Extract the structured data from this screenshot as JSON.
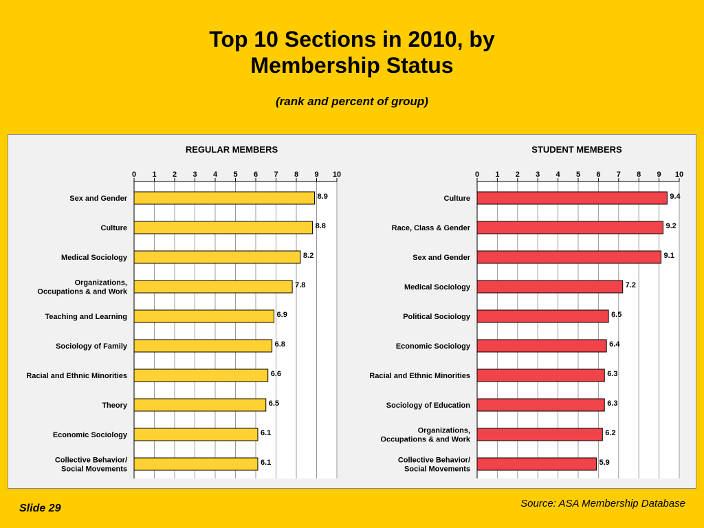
{
  "slide": {
    "title_line1": "Top 10 Sections in 2010, by",
    "title_line2": "Membership Status",
    "subtitle": "(rank and percent of group)",
    "slide_number": "Slide 29",
    "source": "Source: ASA Membership Database"
  },
  "colors": {
    "background": "#FFCC00",
    "regular_bar": "#FFD133",
    "student_bar": "#F0434A"
  },
  "chart_data": [
    {
      "type": "bar",
      "orientation": "horizontal",
      "title": "REGULAR MEMBERS",
      "xlim": [
        0,
        10
      ],
      "x_ticks": [
        "0",
        "1",
        "2",
        "3",
        "4",
        "5",
        "6",
        "7",
        "8",
        "9",
        "10"
      ],
      "categories": [
        "Sex and Gender",
        "Culture",
        "Medical Sociology",
        "Organizations,\nOccupations & and Work",
        "Teaching and Learning",
        "Sociology of Family",
        "Racial and Ethnic Minorities",
        "Theory",
        "Economic Sociology",
        "Collective Behavior/\nSocial Movements"
      ],
      "values": [
        8.9,
        8.8,
        8.2,
        7.8,
        6.9,
        6.8,
        6.6,
        6.5,
        6.1,
        6.1
      ],
      "value_labels": [
        "8.9",
        "8.8",
        "8.2",
        "7.8",
        "6.9",
        "6.8",
        "6.6",
        "6.5",
        "6.1",
        "6.1"
      ],
      "grid": true
    },
    {
      "type": "bar",
      "orientation": "horizontal",
      "title": "STUDENT MEMBERS",
      "xlim": [
        0,
        10
      ],
      "x_ticks": [
        "0",
        "1",
        "2",
        "3",
        "4",
        "5",
        "6",
        "7",
        "8",
        "9",
        "10"
      ],
      "categories": [
        "Culture",
        "Race, Class & Gender",
        "Sex and Gender",
        "Medical Sociology",
        "Political Sociology",
        "Economic Sociology",
        "Racial and Ethnic Minorities",
        "Sociology of Education",
        "Organizations,\nOccupations & and Work",
        "Collective Behavior/\nSocial Movements"
      ],
      "values": [
        9.4,
        9.2,
        9.1,
        7.2,
        6.5,
        6.4,
        6.3,
        6.3,
        6.2,
        5.9
      ],
      "value_labels": [
        "9.4",
        "9.2",
        "9.1",
        "7.2",
        "6.5",
        "6.4",
        "6.3",
        "6.3",
        "6.2",
        "5.9"
      ],
      "grid": true
    }
  ]
}
